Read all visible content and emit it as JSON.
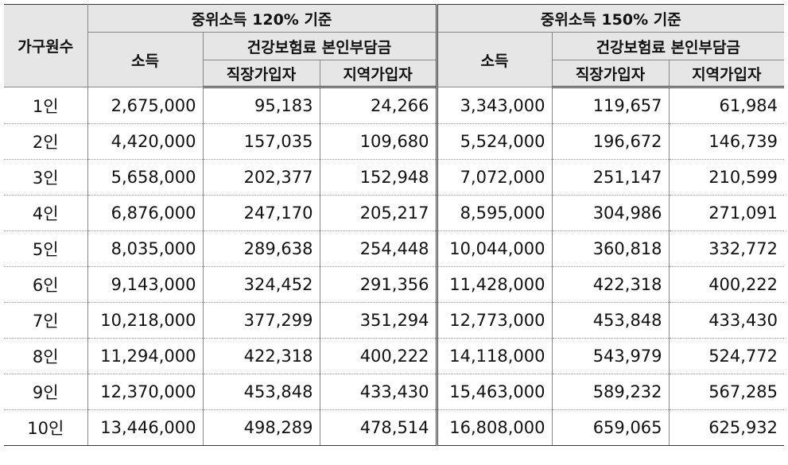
{
  "header": {
    "household_label": "가구원수",
    "group_120": "중위소득 120% 기준",
    "group_150": "중위소득 150% 기준",
    "income_label": "소득",
    "premium_label": "건강보험료 본인부담금",
    "employee_label": "직장가입자",
    "regional_label": "지역가입자"
  },
  "rows": [
    {
      "household": "1인",
      "inc120": "2,675,000",
      "emp120": "95,183",
      "reg120": "24,266",
      "inc150": "3,343,000",
      "emp150": "119,657",
      "reg150": "61,984"
    },
    {
      "household": "2인",
      "inc120": "4,420,000",
      "emp120": "157,035",
      "reg120": "109,680",
      "inc150": "5,524,000",
      "emp150": "196,672",
      "reg150": "146,739"
    },
    {
      "household": "3인",
      "inc120": "5,658,000",
      "emp120": "202,377",
      "reg120": "152,948",
      "inc150": "7,072,000",
      "emp150": "251,147",
      "reg150": "210,599"
    },
    {
      "household": "4인",
      "inc120": "6,876,000",
      "emp120": "247,170",
      "reg120": "205,217",
      "inc150": "8,595,000",
      "emp150": "304,986",
      "reg150": "271,091"
    },
    {
      "household": "5인",
      "inc120": "8,035,000",
      "emp120": "289,638",
      "reg120": "254,448",
      "inc150": "10,044,000",
      "emp150": "360,818",
      "reg150": "332,772"
    },
    {
      "household": "6인",
      "inc120": "9,143,000",
      "emp120": "324,452",
      "reg120": "291,356",
      "inc150": "11,428,000",
      "emp150": "422,318",
      "reg150": "400,222"
    },
    {
      "household": "7인",
      "inc120": "10,218,000",
      "emp120": "377,299",
      "reg120": "351,294",
      "inc150": "12,773,000",
      "emp150": "453,848",
      "reg150": "433,430"
    },
    {
      "household": "8인",
      "inc120": "11,294,000",
      "emp120": "422,318",
      "reg120": "400,222",
      "inc150": "14,118,000",
      "emp150": "543,979",
      "reg150": "524,772"
    },
    {
      "household": "9인",
      "inc120": "12,370,000",
      "emp120": "453,848",
      "reg120": "433,430",
      "inc150": "15,463,000",
      "emp150": "589,232",
      "reg150": "567,285"
    },
    {
      "household": "10인",
      "inc120": "13,446,000",
      "emp120": "498,289",
      "reg120": "478,514",
      "inc150": "16,808,000",
      "emp150": "659,065",
      "reg150": "625,932"
    }
  ]
}
